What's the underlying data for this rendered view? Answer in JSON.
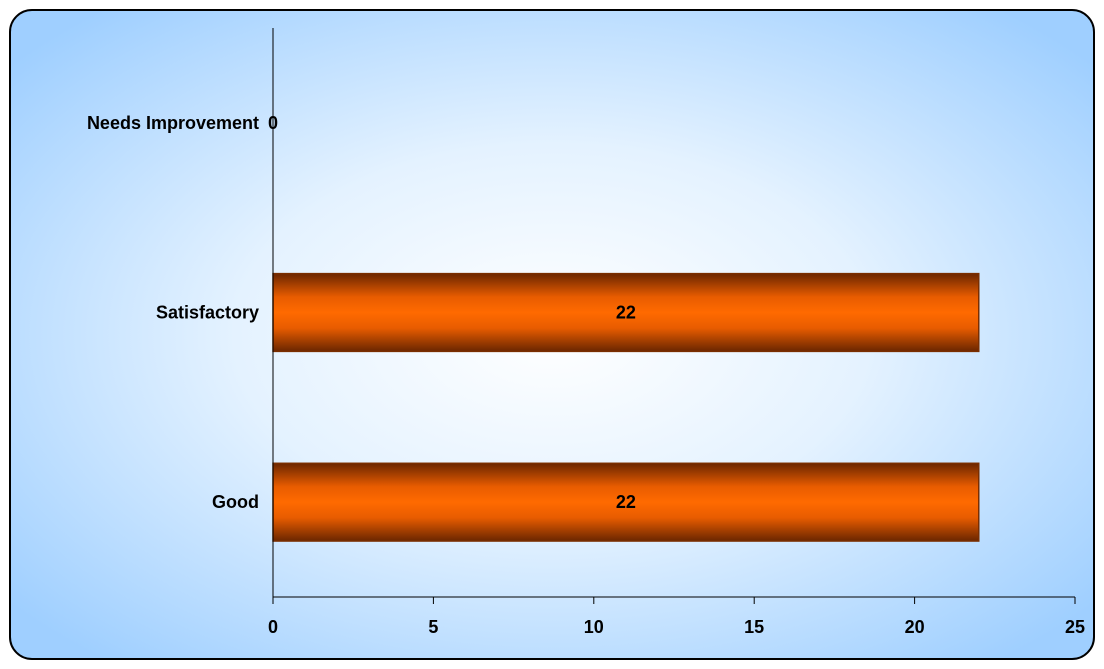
{
  "chart_data": {
    "type": "bar",
    "orientation": "horizontal",
    "categories": [
      "Needs Improvement",
      "Satisfactory",
      "Good"
    ],
    "values": [
      0,
      22,
      22
    ],
    "data_labels": [
      "0",
      "22",
      "22"
    ],
    "xlim": [
      0,
      25
    ],
    "x_ticks": [
      0,
      5,
      10,
      15,
      20,
      25
    ],
    "x_tick_labels": [
      "0",
      "5",
      "10",
      "15",
      "20",
      "25"
    ],
    "title": "",
    "xlabel": "",
    "ylabel": "",
    "grid": false,
    "legend": "none",
    "bar_color": "#FF6600",
    "bar_edge_color": "#7A2E00",
    "background_color": "#9FCFFF",
    "background_center_color": "#FFFFFF"
  }
}
